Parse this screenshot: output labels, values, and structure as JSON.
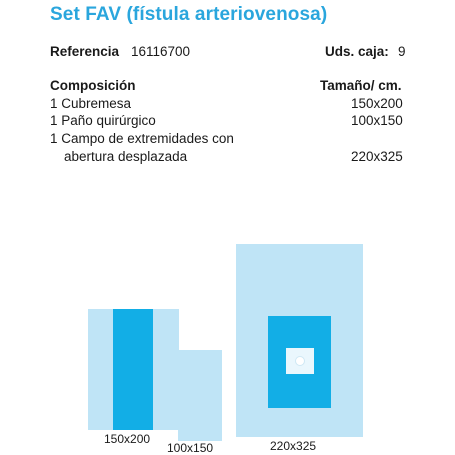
{
  "title": "Set FAV (fístula arteriovenosa)",
  "reference": {
    "label": "Referencia",
    "value": "16116700"
  },
  "box_units": {
    "label": "Uds. caja:",
    "value": "9"
  },
  "composition": {
    "header": "Composición",
    "size_header": "Tamaño/ cm.",
    "items": [
      {
        "name": "1 Cubremesa",
        "size": "150x200"
      },
      {
        "name": "1 Paño quirúrgico",
        "size": "100x150"
      },
      {
        "name": "1 Campo de extremidades con",
        "name_cont": "abertura desplazada",
        "size": "220x325"
      }
    ]
  },
  "illustration": {
    "captions": [
      "150x200",
      "100x150",
      "220x325"
    ],
    "colors": {
      "light": "#bfe4f6",
      "accent": "#12aee6",
      "title": "#2aa6dd"
    }
  }
}
